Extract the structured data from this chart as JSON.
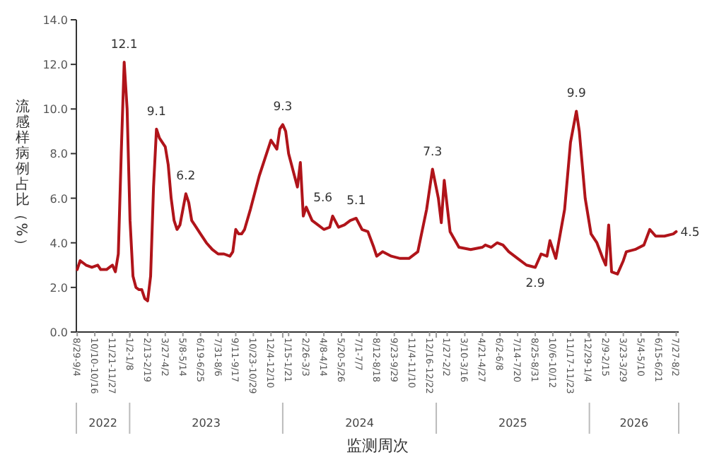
{
  "chart_data": {
    "type": "line",
    "ylabel": "流感样病例占比（%）",
    "xlabel": "监测周次",
    "xlim": [
      "2022-08-27",
      "2026-08-02"
    ],
    "ylim": [
      0,
      14
    ],
    "yticks": [
      {
        "value": 0,
        "label": "0.0"
      },
      {
        "value": 2,
        "label": "2.0"
      },
      {
        "value": 4,
        "label": "4.0"
      },
      {
        "value": 6,
        "label": "6.0"
      },
      {
        "value": 8,
        "label": "8.0"
      },
      {
        "value": 10,
        "label": "10.0"
      },
      {
        "value": 12,
        "label": "12.0"
      },
      {
        "value": 14,
        "label": "14.0"
      }
    ],
    "xticks": [
      {
        "value": "2022-08-29",
        "label": "8/29-9/4"
      },
      {
        "value": "2022-10-10",
        "label": "10/10-10/16"
      },
      {
        "value": "2022-11-21",
        "label": "11/21-11/27"
      },
      {
        "value": "2023-01-02",
        "label": "1/2-1/8"
      },
      {
        "value": "2023-02-13",
        "label": "2/13-2/19"
      },
      {
        "value": "2023-03-27",
        "label": "3/27-4/2"
      },
      {
        "value": "2023-05-08",
        "label": "5/8-5/14"
      },
      {
        "value": "2023-06-19",
        "label": "6/19-6/25"
      },
      {
        "value": "2023-07-31",
        "label": "7/31-8/6"
      },
      {
        "value": "2023-09-11",
        "label": "9/11-9/17"
      },
      {
        "value": "2023-10-23",
        "label": "10/23-10/29"
      },
      {
        "value": "2023-12-04",
        "label": "12/4-12/10"
      },
      {
        "value": "2024-01-15",
        "label": "1/15-1/21"
      },
      {
        "value": "2024-02-26",
        "label": "2/26-3/3"
      },
      {
        "value": "2024-04-08",
        "label": "4/8-4/14"
      },
      {
        "value": "2024-05-20",
        "label": "5/20-5/26"
      },
      {
        "value": "2024-07-01",
        "label": "7/1-7/7"
      },
      {
        "value": "2024-08-12",
        "label": "8/12-8/18"
      },
      {
        "value": "2024-09-23",
        "label": "9/23-9/29"
      },
      {
        "value": "2024-11-04",
        "label": "11/4-11/10"
      },
      {
        "value": "2024-12-16",
        "label": "12/16-12/22"
      },
      {
        "value": "2025-01-27",
        "label": "1/27-2/2"
      },
      {
        "value": "2025-03-10",
        "label": "3/10-3/16"
      },
      {
        "value": "2025-04-21",
        "label": "4/21-4/27"
      },
      {
        "value": "2025-06-02",
        "label": "6/2-6/8"
      },
      {
        "value": "2025-07-14",
        "label": "7/14-7/20"
      },
      {
        "value": "2025-08-25",
        "label": "8/25-8/31"
      },
      {
        "value": "2025-10-06",
        "label": "10/6-10/12"
      },
      {
        "value": "2025-11-17",
        "label": "11/17-11/23"
      },
      {
        "value": "2025-12-29",
        "label": "12/29-1/4"
      },
      {
        "value": "2026-02-09",
        "label": "2/9-2/15"
      },
      {
        "value": "2026-03-23",
        "label": "3/23-3/29"
      },
      {
        "value": "2026-05-04",
        "label": "5/4-5/10"
      },
      {
        "value": "2026-06-15",
        "label": "6/15-6/21"
      },
      {
        "value": "2026-07-27",
        "label": "7/27-8/2"
      },
      {
        "value": "2023-01-01",
        "label": null
      },
      {
        "value": "2024-01-01",
        "label": null
      },
      {
        "value": "2025-01-01",
        "label": null
      },
      {
        "value": "2026-01-01",
        "label": null
      }
    ],
    "annotations": [
      "2022",
      "2023",
      "2024",
      "2025",
      "2026"
    ],
    "x": [
      "2022-08-29",
      "2022-09-05",
      "2022-09-19",
      "2022-10-03",
      "2022-10-17",
      "2022-10-24",
      "2022-11-07",
      "2022-11-14",
      "2022-11-21",
      "2022-11-28",
      "2022-12-05",
      "2022-12-12",
      "2022-12-19",
      "2022-12-26",
      "2023-01-02",
      "2023-01-09",
      "2023-01-16",
      "2023-01-23",
      "2023-01-30",
      "2023-02-06",
      "2023-02-13",
      "2023-02-20",
      "2023-02-27",
      "2023-03-06",
      "2023-03-13",
      "2023-03-20",
      "2023-03-27",
      "2023-04-03",
      "2023-04-10",
      "2023-04-17",
      "2023-04-24",
      "2023-05-01",
      "2023-05-08",
      "2023-05-15",
      "2023-05-22",
      "2023-05-29",
      "2023-06-05",
      "2023-06-19",
      "2023-07-03",
      "2023-07-17",
      "2023-07-31",
      "2023-08-14",
      "2023-08-28",
      "2023-09-04",
      "2023-09-11",
      "2023-09-18",
      "2023-09-25",
      "2023-10-02",
      "2023-10-16",
      "2023-11-06",
      "2023-11-20",
      "2023-12-04",
      "2023-12-18",
      "2023-12-25",
      "2024-01-01",
      "2024-01-08",
      "2024-01-15",
      "2024-01-29",
      "2024-02-05",
      "2024-02-12",
      "2024-02-19",
      "2024-02-26",
      "2024-03-11",
      "2024-03-25",
      "2024-04-08",
      "2024-04-22",
      "2024-04-29",
      "2024-05-13",
      "2024-05-27",
      "2024-06-10",
      "2024-06-24",
      "2024-07-08",
      "2024-07-22",
      "2024-08-05",
      "2024-08-12",
      "2024-08-26",
      "2024-09-16",
      "2024-10-07",
      "2024-10-28",
      "2024-11-18",
      "2024-12-09",
      "2024-12-23",
      "2025-01-06",
      "2025-01-13",
      "2025-01-20",
      "2025-02-03",
      "2025-02-24",
      "2025-03-24",
      "2025-04-21",
      "2025-04-28",
      "2025-05-12",
      "2025-05-26",
      "2025-06-09",
      "2025-06-23",
      "2025-07-14",
      "2025-08-04",
      "2025-08-25",
      "2025-09-08",
      "2025-09-22",
      "2025-09-29",
      "2025-10-13",
      "2025-11-03",
      "2025-11-17",
      "2025-12-01",
      "2025-12-08",
      "2025-12-22",
      "2026-01-05",
      "2026-01-19",
      "2026-02-02",
      "2026-02-09",
      "2026-02-16",
      "2026-02-23",
      "2026-03-09",
      "2026-03-23",
      "2026-03-30",
      "2026-04-20",
      "2026-05-11",
      "2026-05-25",
      "2026-06-08",
      "2026-06-29",
      "2026-07-20",
      "2026-07-27"
    ],
    "series": [
      {
        "color": "#b0141a",
        "values": [
          2.8,
          3.2,
          3.0,
          2.9,
          3.0,
          2.8,
          2.8,
          2.9,
          3.0,
          2.7,
          3.5,
          8.0,
          12.1,
          10.0,
          5.0,
          2.5,
          2.0,
          1.9,
          1.9,
          1.5,
          1.4,
          2.5,
          6.5,
          9.1,
          8.7,
          8.5,
          8.3,
          7.5,
          6.0,
          5.0,
          4.6,
          4.8,
          5.5,
          6.2,
          5.8,
          5.0,
          4.8,
          4.4,
          4.0,
          3.7,
          3.5,
          3.5,
          3.4,
          3.6,
          4.6,
          4.4,
          4.4,
          4.6,
          5.5,
          7.0,
          7.8,
          8.6,
          8.2,
          9.1,
          9.3,
          9.0,
          8.0,
          7.0,
          6.5,
          7.6,
          5.2,
          5.6,
          5.0,
          4.8,
          4.6,
          4.7,
          5.2,
          4.7,
          4.8,
          5.0,
          5.1,
          4.6,
          4.5,
          3.8,
          3.4,
          3.6,
          3.4,
          3.3,
          3.3,
          3.6,
          5.5,
          7.3,
          6.0,
          4.9,
          6.8,
          4.5,
          3.8,
          3.7,
          3.8,
          3.9,
          3.8,
          4.0,
          3.9,
          3.6,
          3.3,
          3.0,
          2.9,
          3.5,
          3.4,
          4.1,
          3.3,
          5.5,
          8.5,
          9.9,
          9.0,
          6.0,
          4.4,
          4.0,
          3.3,
          3.0,
          4.8,
          2.7,
          2.6,
          3.2,
          3.6,
          3.7,
          3.9,
          4.6,
          4.3,
          4.3,
          4.4,
          4.5
        ],
        "value_labels": [
          null,
          null,
          null,
          null,
          null,
          null,
          null,
          null,
          null,
          null,
          null,
          null,
          "12.1",
          null,
          null,
          null,
          null,
          null,
          null,
          null,
          null,
          null,
          null,
          "9.1",
          null,
          null,
          null,
          null,
          null,
          null,
          null,
          null,
          null,
          "6.2",
          null,
          null,
          null,
          null,
          null,
          null,
          null,
          null,
          null,
          null,
          null,
          null,
          null,
          null,
          null,
          null,
          null,
          null,
          null,
          null,
          "9.3",
          null,
          null,
          null,
          null,
          null,
          null,
          "5.6",
          null,
          null,
          null,
          null,
          null,
          null,
          null,
          null,
          "5.1",
          null,
          null,
          null,
          null,
          null,
          null,
          null,
          null,
          null,
          null,
          "7.3",
          null,
          null,
          null,
          null,
          null,
          null,
          null,
          null,
          null,
          null,
          null,
          null,
          null,
          null,
          "2.9",
          null,
          null,
          null,
          null,
          null,
          null,
          "9.9",
          null,
          null,
          null,
          null,
          null,
          null,
          null,
          null,
          null,
          null,
          null,
          null,
          null,
          null,
          null,
          null,
          null,
          "4.5"
        ]
      }
    ],
    "line_style": "solid",
    "marker": "none"
  }
}
